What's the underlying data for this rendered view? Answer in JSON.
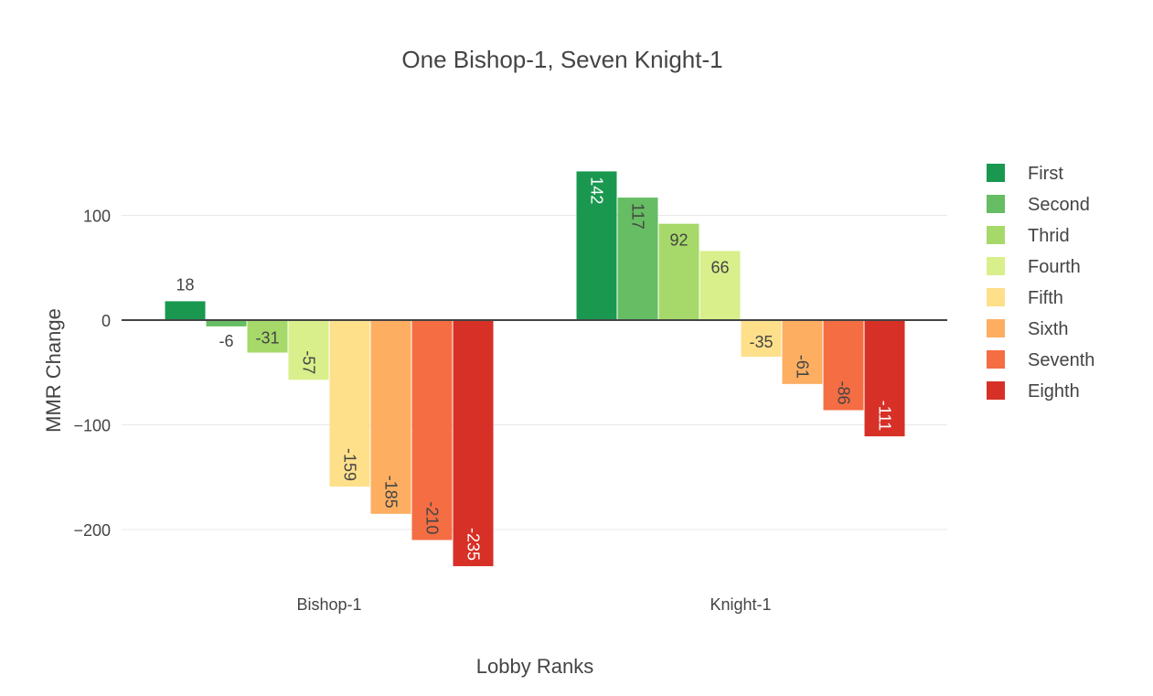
{
  "chart_data": {
    "type": "bar",
    "title": "One Bishop-1, Seven Knight-1",
    "xlabel": "Lobby Ranks",
    "ylabel": "MMR Change",
    "categories": [
      "Bishop-1",
      "Knight-1"
    ],
    "ylim": [
      -250,
      185
    ],
    "yticks": [
      {
        "value": 100,
        "label": "100"
      },
      {
        "value": 0,
        "label": "0"
      },
      {
        "value": -100,
        "label": "−100"
      },
      {
        "value": -200,
        "label": "−200"
      }
    ],
    "grid": true,
    "legend_position": "right",
    "series": [
      {
        "name": "First",
        "color": "#1a9850",
        "values": [
          18,
          142
        ]
      },
      {
        "name": "Second",
        "color": "#66bd63",
        "values": [
          -6,
          117
        ]
      },
      {
        "name": "Thrid",
        "color": "#a6d96a",
        "values": [
          -31,
          92
        ]
      },
      {
        "name": "Fourth",
        "color": "#d9ef8b",
        "values": [
          -57,
          66
        ]
      },
      {
        "name": "Fifth",
        "color": "#fee08b",
        "values": [
          -159,
          -35
        ]
      },
      {
        "name": "Sixth",
        "color": "#fdae61",
        "values": [
          -185,
          -61
        ]
      },
      {
        "name": "Seventh",
        "color": "#f46d43",
        "values": [
          -210,
          -86
        ]
      },
      {
        "name": "Eighth",
        "color": "#d73027",
        "values": [
          -235,
          -111
        ]
      }
    ]
  }
}
